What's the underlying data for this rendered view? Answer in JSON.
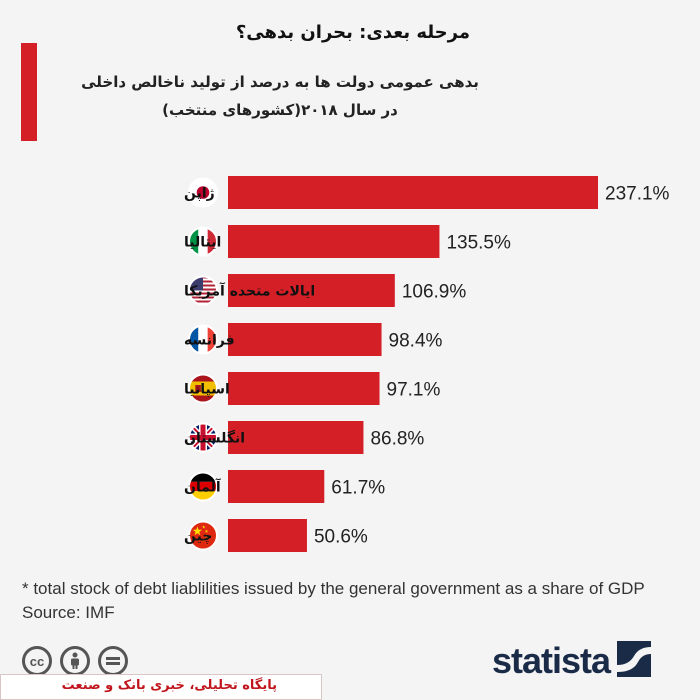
{
  "title": "مرحله بعدی: بحران بدهی؟",
  "subtitle_line1": "بدهی عمومی دولت ها به درصد از تولید ناخالص داخلی",
  "subtitle_line2": "در سال ۲۰۱۸(کشورهای منتخب)",
  "chart_data": {
    "type": "bar",
    "orientation": "horizontal",
    "categories": [
      "ژاپن",
      "ایتالیا",
      "ایالات متحده آمریکا",
      "فرانسه",
      "اسپانیا",
      "انگلستان",
      "آلمان",
      "چین"
    ],
    "values": [
      237.1,
      135.5,
      106.9,
      98.4,
      97.1,
      86.8,
      61.7,
      50.6
    ],
    "value_labels": [
      "237.1%",
      "135.5%",
      "106.9%",
      "98.4%",
      "97.1%",
      "86.8%",
      "61.7%",
      "50.6%"
    ],
    "flags": [
      "japan",
      "italy",
      "usa",
      "france",
      "spain",
      "uk",
      "germany",
      "china"
    ],
    "bar_color": "#d51f27",
    "xlim": [
      0,
      250
    ],
    "grid": false
  },
  "footnote": "* total stock of debt liablilities issued by the general government as a share of GDP",
  "source": "Source: IMF",
  "license_icons": [
    "cc",
    "by",
    "nd"
  ],
  "brand": "statista",
  "watermark": "پایگاه تحلیلی، خبری بانک و صنعت"
}
